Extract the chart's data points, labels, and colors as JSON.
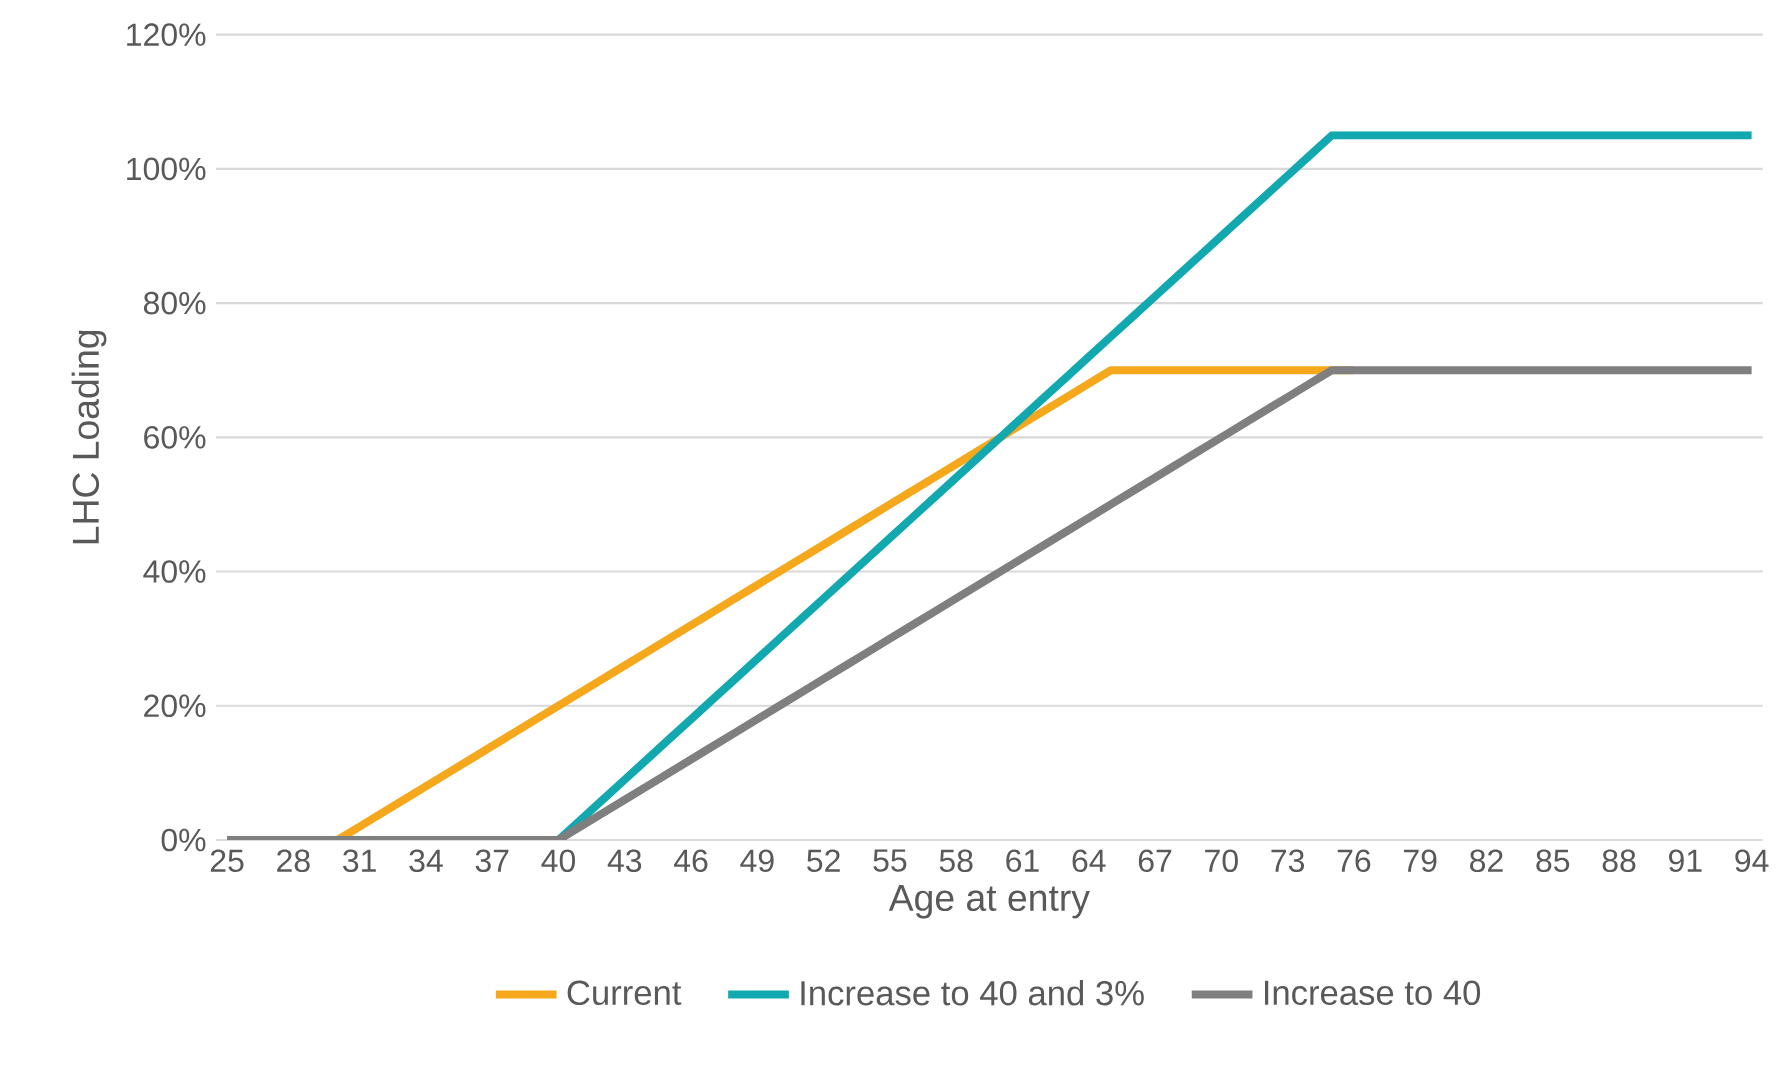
{
  "chart_data": {
    "type": "line",
    "xlabel": "Age at entry",
    "ylabel": "LHC Loading",
    "categories": [
      "25",
      null,
      null,
      "28",
      null,
      null,
      "31",
      null,
      null,
      "34",
      null,
      null,
      "37",
      null,
      null,
      "40",
      null,
      null,
      "43",
      null,
      null,
      "46",
      null,
      null,
      "49",
      null,
      null,
      "52",
      null,
      null,
      "55",
      null,
      null,
      "58",
      null,
      null,
      "61",
      null,
      null,
      "64",
      null,
      null,
      "67",
      null,
      null,
      "70",
      null,
      null,
      "73",
      null,
      null,
      "76",
      null,
      null,
      "79",
      null,
      null,
      "82",
      null,
      null,
      "85",
      null,
      null,
      "88",
      null,
      null,
      "91",
      null,
      null,
      "94"
    ],
    "series": [
      {
        "name": "Current",
        "color": "#f5a81c",
        "values": [
          null,
          null,
          null,
          null,
          0,
          0,
          2,
          4,
          6,
          8,
          10,
          12,
          14,
          16,
          18,
          20,
          22,
          24,
          26,
          28,
          30,
          32,
          34,
          36,
          38,
          40,
          42,
          44,
          46,
          48,
          50,
          52,
          54,
          56,
          58,
          60,
          62,
          64,
          66,
          68,
          70,
          70,
          70,
          70,
          70,
          70,
          70,
          70,
          70,
          70,
          70,
          70,
          null,
          null,
          null,
          null,
          null,
          null,
          null,
          null,
          null,
          null,
          null,
          null,
          null,
          null,
          null,
          null,
          null,
          null
        ]
      },
      {
        "name": "Increase to 40 and 3%",
        "color": "#12a8b0",
        "values": [
          null,
          null,
          null,
          null,
          null,
          null,
          null,
          null,
          null,
          null,
          null,
          null,
          null,
          null,
          0,
          0,
          3,
          6,
          9,
          12,
          15,
          18,
          21,
          24,
          27,
          30,
          33,
          36,
          39,
          42,
          45,
          48,
          51,
          54,
          57,
          60,
          63,
          66,
          69,
          72,
          75,
          78,
          81,
          84,
          87,
          90,
          93,
          96,
          99,
          102,
          105,
          105,
          105,
          105,
          105,
          105,
          105,
          105,
          105,
          105,
          105,
          105,
          105,
          105,
          105,
          105,
          105,
          105,
          105,
          105
        ]
      },
      {
        "name": "Increase to 40",
        "color": "#7f7f7f",
        "values": [
          0,
          0,
          0,
          0,
          0,
          0,
          0,
          0,
          0,
          0,
          0,
          0,
          0,
          0,
          0,
          0,
          2,
          4,
          6,
          8,
          10,
          12,
          14,
          16,
          18,
          20,
          22,
          24,
          26,
          28,
          30,
          32,
          34,
          36,
          38,
          40,
          42,
          44,
          46,
          48,
          50,
          52,
          54,
          56,
          58,
          60,
          62,
          64,
          66,
          68,
          70,
          70,
          70,
          70,
          70,
          70,
          70,
          70,
          70,
          70,
          70,
          70,
          70,
          70,
          70,
          70,
          70,
          70,
          70,
          70
        ]
      }
    ],
    "ylim": [
      0,
      120
    ],
    "yticks": [
      {
        "value": 0,
        "label": "0%"
      },
      {
        "value": 20,
        "label": "20%"
      },
      {
        "value": 40,
        "label": "40%"
      },
      {
        "value": 60,
        "label": "60%"
      },
      {
        "value": 80,
        "label": "80%"
      },
      {
        "value": 100,
        "label": "100%"
      },
      {
        "value": 120,
        "label": "120%"
      }
    ],
    "grid": "y",
    "legend": "bottom",
    "marker": "none",
    "line_style": "solid"
  }
}
